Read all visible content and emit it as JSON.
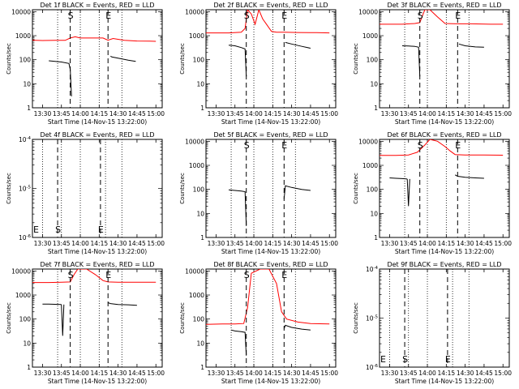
{
  "page": {
    "background": "#ffffff"
  },
  "chart_data": [
    {
      "type": "line",
      "title": "Det 1f BLACK = Events, RED = LLD",
      "xlabel": "Start Time (14-Nov-15 13:22:00)",
      "ylabel": "Counts/sec",
      "x_ticks": [
        "13:30",
        "13:45",
        "14:00",
        "14:15",
        "14:30",
        "14:45",
        "15:00"
      ],
      "xlim": [
        "13:22",
        "15:05"
      ],
      "yscale": "log",
      "ylim": [
        1,
        12000
      ],
      "y_ticks": [
        "1",
        "10",
        "100",
        "1000",
        "10000"
      ],
      "markers": [
        {
          "time": "13:52",
          "label": "S"
        },
        {
          "time": "14:22",
          "label": "E"
        }
      ],
      "dotted_lines": [
        "13:42",
        "14:00",
        "14:15",
        "14:33"
      ],
      "series": [
        {
          "color": "#ff0000",
          "x": [
            "13:22",
            "13:30",
            "13:40",
            "13:48",
            "13:52",
            "13:56",
            "14:00",
            "14:10",
            "14:18",
            "14:22",
            "14:26",
            "14:35",
            "14:45",
            "14:55",
            "15:00"
          ],
          "y": [
            650,
            630,
            640,
            640,
            800,
            900,
            800,
            800,
            800,
            650,
            760,
            640,
            600,
            590,
            580
          ]
        },
        {
          "color": "#000000",
          "x": [
            "13:35",
            "13:40",
            "13:45",
            "13:51",
            "13:52",
            "13:53"
          ],
          "y": [
            90,
            85,
            80,
            70,
            40,
            3
          ]
        },
        {
          "color": "#000000",
          "x": [
            "14:24",
            "14:25",
            "14:32",
            "14:38",
            "14:44"
          ],
          "y": [
            140,
            130,
            110,
            95,
            85
          ]
        }
      ]
    },
    {
      "type": "line",
      "title": "Det 2f BLACK = Events, RED = LLD",
      "xlabel": "Start Time (14-Nov-15 13:22:00)",
      "ylabel": "Counts/sec",
      "x_ticks": [
        "13:30",
        "13:45",
        "14:00",
        "14:15",
        "14:30",
        "14:45",
        "15:00"
      ],
      "xlim": [
        "13:22",
        "15:05"
      ],
      "yscale": "log",
      "ylim": [
        1,
        12000
      ],
      "y_ticks": [
        "1",
        "10",
        "100",
        "1000",
        "10000"
      ],
      "markers": [
        {
          "time": "13:54",
          "label": "S"
        },
        {
          "time": "14:24",
          "label": "E"
        }
      ],
      "dotted_lines": [
        "13:42",
        "14:00",
        "14:15",
        "14:33"
      ],
      "series": [
        {
          "color": "#ff0000",
          "x": [
            "13:22",
            "13:40",
            "13:50",
            "13:53",
            "13:55",
            "13:58",
            "14:01",
            "14:04",
            "14:07",
            "14:10",
            "14:14",
            "14:18",
            "14:24",
            "14:35",
            "14:50",
            "15:00"
          ],
          "y": [
            1300,
            1300,
            1400,
            2000,
            12000,
            8000,
            3000,
            12000,
            5000,
            3000,
            1500,
            1400,
            1400,
            1350,
            1330,
            1300
          ]
        },
        {
          "color": "#000000",
          "x": [
            "13:40",
            "13:45",
            "13:50",
            "13:53",
            "13:54"
          ],
          "y": [
            400,
            380,
            320,
            280,
            20
          ]
        },
        {
          "color": "#000000",
          "x": [
            "14:25",
            "14:30",
            "14:38",
            "14:45"
          ],
          "y": [
            520,
            450,
            360,
            300
          ]
        }
      ]
    },
    {
      "type": "line",
      "title": "Det 3f BLACK = Events, RED = LLD",
      "xlabel": "Start Time (14-Nov-15 13:22:00)",
      "ylabel": "Counts/sec",
      "x_ticks": [
        "13:30",
        "13:45",
        "14:00",
        "14:15",
        "14:30",
        "14:45",
        "15:00"
      ],
      "xlim": [
        "13:22",
        "15:05"
      ],
      "yscale": "log",
      "ylim": [
        1,
        12000
      ],
      "y_ticks": [
        "1",
        "10",
        "100",
        "1000",
        "10000"
      ],
      "markers": [
        {
          "time": "13:54",
          "label": "S"
        },
        {
          "time": "14:24",
          "label": "E"
        }
      ],
      "dotted_lines": [
        "13:42",
        "14:00",
        "14:15",
        "14:33"
      ],
      "series": [
        {
          "color": "#ff0000",
          "x": [
            "13:22",
            "13:40",
            "13:50",
            "13:54",
            "13:58",
            "14:02",
            "14:08",
            "14:14",
            "14:24",
            "14:35",
            "14:50",
            "15:00"
          ],
          "y": [
            3000,
            3000,
            3200,
            3500,
            12000,
            12000,
            6000,
            3200,
            3100,
            3100,
            3000,
            3000
          ]
        },
        {
          "color": "#000000",
          "x": [
            "13:40",
            "13:45",
            "13:50",
            "13:53",
            "13:54"
          ],
          "y": [
            380,
            370,
            360,
            330,
            20
          ]
        },
        {
          "color": "#000000",
          "x": [
            "14:25",
            "14:30",
            "14:38",
            "14:45"
          ],
          "y": [
            450,
            380,
            340,
            330
          ]
        }
      ]
    },
    {
      "type": "line",
      "title": "Det 4f BLACK = Events, RED = LLD",
      "xlabel": "Start Time (14-Nov-15 13:22:00)",
      "ylabel": "Counts/sec",
      "x_ticks": [
        "13:30",
        "13:45",
        "14:00",
        "14:15",
        "14:30",
        "14:45",
        "15:00"
      ],
      "xlim": [
        "13:22",
        "15:05"
      ],
      "yscale": "log",
      "ylim": [
        1e-06,
        0.0001
      ],
      "y_ticks": [
        "10^-6",
        "10^-5",
        "10^-4"
      ],
      "markers": [
        {
          "time": "13:22",
          "label": "E"
        },
        {
          "time": "13:42",
          "label": "S"
        },
        {
          "time": "14:16",
          "label": "E"
        }
      ],
      "dotted_lines": [
        "13:30",
        "13:45",
        "14:00",
        "14:20",
        "14:33"
      ],
      "series": []
    },
    {
      "type": "line",
      "title": "Det 5f BLACK = Events, RED = LLD",
      "xlabel": "Start Time (14-Nov-15 13:22:00)",
      "ylabel": "Counts/sec",
      "x_ticks": [
        "13:30",
        "13:45",
        "14:00",
        "14:15",
        "14:30",
        "14:45",
        "15:00"
      ],
      "xlim": [
        "13:22",
        "15:05"
      ],
      "yscale": "log",
      "ylim": [
        1,
        12000
      ],
      "y_ticks": [
        "1",
        "10",
        "100",
        "1000",
        "10000"
      ],
      "markers": [
        {
          "time": "13:54",
          "label": "S"
        },
        {
          "time": "14:24",
          "label": "E"
        }
      ],
      "dotted_lines": [
        "13:42",
        "14:00",
        "14:15",
        "14:33"
      ],
      "series": [
        {
          "color": "#000000",
          "x": [
            "13:40",
            "13:45",
            "13:50",
            "13:53",
            "13:54"
          ],
          "y": [
            95,
            90,
            85,
            80,
            3
          ]
        },
        {
          "color": "#000000",
          "x": [
            "14:24",
            "14:25",
            "14:30",
            "14:38",
            "14:45"
          ],
          "y": [
            40,
            140,
            120,
            100,
            90
          ]
        }
      ]
    },
    {
      "type": "line",
      "title": "Det 6f BLACK = Events, RED = LLD",
      "xlabel": "Start Time (14-Nov-15 13:22:00)",
      "ylabel": "Counts/sec",
      "x_ticks": [
        "13:30",
        "13:45",
        "14:00",
        "14:15",
        "14:30",
        "14:45",
        "15:00"
      ],
      "xlim": [
        "13:22",
        "15:05"
      ],
      "yscale": "log",
      "ylim": [
        1,
        12000
      ],
      "y_ticks": [
        "1",
        "10",
        "100",
        "1000",
        "10000"
      ],
      "markers": [
        {
          "time": "13:54",
          "label": "S"
        },
        {
          "time": "14:24",
          "label": "E"
        }
      ],
      "dotted_lines": [
        "13:42",
        "14:00",
        "14:15",
        "14:33"
      ],
      "series": [
        {
          "color": "#ff0000",
          "x": [
            "13:22",
            "13:35",
            "13:45",
            "13:52",
            "13:58",
            "14:02",
            "14:08",
            "14:14",
            "14:18",
            "14:22",
            "14:30",
            "14:45",
            "15:00"
          ],
          "y": [
            2600,
            2600,
            2700,
            3500,
            7000,
            12000,
            10000,
            6000,
            4000,
            2800,
            2700,
            2700,
            2650
          ]
        },
        {
          "color": "#000000",
          "x": [
            "13:30",
            "13:35",
            "13:40",
            "13:44"
          ],
          "y": [
            300,
            290,
            280,
            270
          ]
        },
        {
          "color": "#000000",
          "x": [
            "13:44",
            "13:45",
            "13:46"
          ],
          "y": [
            270,
            20,
            270
          ]
        },
        {
          "color": "#000000",
          "x": [
            "14:22",
            "14:24",
            "14:30",
            "14:38",
            "14:45"
          ],
          "y": [
            400,
            350,
            320,
            300,
            290
          ]
        }
      ]
    },
    {
      "type": "line",
      "title": "Det 7f BLACK = Events, RED = LLD",
      "xlabel": "Start Time (14-Nov-15 13:22:00)",
      "ylabel": "Counts/sec",
      "x_ticks": [
        "13:30",
        "13:45",
        "14:00",
        "14:15",
        "14:30",
        "14:45",
        "15:00"
      ],
      "xlim": [
        "13:22",
        "15:05"
      ],
      "yscale": "log",
      "ylim": [
        1,
        12000
      ],
      "y_ticks": [
        "1",
        "10",
        "100",
        "1000",
        "10000"
      ],
      "markers": [
        {
          "time": "13:52",
          "label": "S"
        },
        {
          "time": "14:22",
          "label": "E"
        }
      ],
      "dotted_lines": [
        "13:42",
        "14:00",
        "14:15",
        "14:33"
      ],
      "series": [
        {
          "color": "#ff0000",
          "x": [
            "13:22",
            "13:35",
            "13:45",
            "13:52",
            "13:55",
            "13:58",
            "14:05",
            "14:12",
            "14:18",
            "14:22",
            "14:30",
            "14:45",
            "15:00"
          ],
          "y": [
            3300,
            3300,
            3400,
            3500,
            7000,
            12000,
            12000,
            7000,
            4000,
            3500,
            3400,
            3400,
            3400
          ]
        },
        {
          "color": "#000000",
          "x": [
            "13:30",
            "13:35",
            "13:40",
            "13:45"
          ],
          "y": [
            420,
            420,
            410,
            400
          ]
        },
        {
          "color": "#000000",
          "x": [
            "13:45",
            "13:46",
            "13:47"
          ],
          "y": [
            400,
            20,
            400
          ]
        },
        {
          "color": "#000000",
          "x": [
            "14:22",
            "14:24",
            "14:30",
            "14:38",
            "14:45"
          ],
          "y": [
            480,
            440,
            400,
            390,
            370
          ]
        }
      ]
    },
    {
      "type": "line",
      "title": "Det 8f BLACK = Events, RED = LLD",
      "xlabel": "Start Time (14-Nov-15 13:22:00)",
      "ylabel": "Counts/sec",
      "x_ticks": [
        "13:30",
        "13:45",
        "14:00",
        "14:15",
        "14:30",
        "14:45",
        "15:00"
      ],
      "xlim": [
        "13:22",
        "15:05"
      ],
      "yscale": "log",
      "ylim": [
        1,
        12000
      ],
      "y_ticks": [
        "1",
        "10",
        "100",
        "1000",
        "10000"
      ],
      "markers": [
        {
          "time": "13:54",
          "label": "S"
        },
        {
          "time": "14:24",
          "label": "E"
        }
      ],
      "dotted_lines": [
        "13:42",
        "14:00",
        "14:15",
        "14:33"
      ],
      "series": [
        {
          "color": "#ff0000",
          "x": [
            "13:22",
            "13:35",
            "13:45",
            "13:52",
            "13:55",
            "13:58",
            "14:05",
            "14:12",
            "14:18",
            "14:22",
            "14:26",
            "14:35",
            "14:45",
            "15:00"
          ],
          "y": [
            60,
            62,
            62,
            65,
            300,
            8000,
            12000,
            12000,
            3000,
            200,
            100,
            75,
            65,
            62
          ]
        },
        {
          "color": "#000000",
          "x": [
            "13:42",
            "13:45",
            "13:50",
            "13:53",
            "13:54"
          ],
          "y": [
            35,
            32,
            30,
            28,
            3
          ]
        },
        {
          "color": "#000000",
          "x": [
            "14:24",
            "14:25",
            "14:30",
            "14:38",
            "14:45"
          ],
          "y": [
            40,
            55,
            45,
            38,
            35
          ]
        }
      ]
    },
    {
      "type": "line",
      "title": "Det 9f BLACK = Events, RED = LLD",
      "xlabel": "Start Time (14-Nov-15 13:22:00)",
      "ylabel": "Counts/sec",
      "x_ticks": [
        "13:30",
        "13:45",
        "14:00",
        "14:15",
        "14:30",
        "14:45",
        "15:00"
      ],
      "xlim": [
        "13:22",
        "15:05"
      ],
      "yscale": "log",
      "ylim": [
        1e-06,
        0.0001
      ],
      "y_ticks": [
        "10^-6",
        "10^-5",
        "10^-4"
      ],
      "markers": [
        {
          "time": "13:22",
          "label": "E"
        },
        {
          "time": "13:42",
          "label": "S"
        },
        {
          "time": "14:16",
          "label": "E"
        }
      ],
      "dotted_lines": [
        "13:30",
        "13:45",
        "14:00",
        "14:20",
        "14:33"
      ],
      "series": []
    }
  ]
}
